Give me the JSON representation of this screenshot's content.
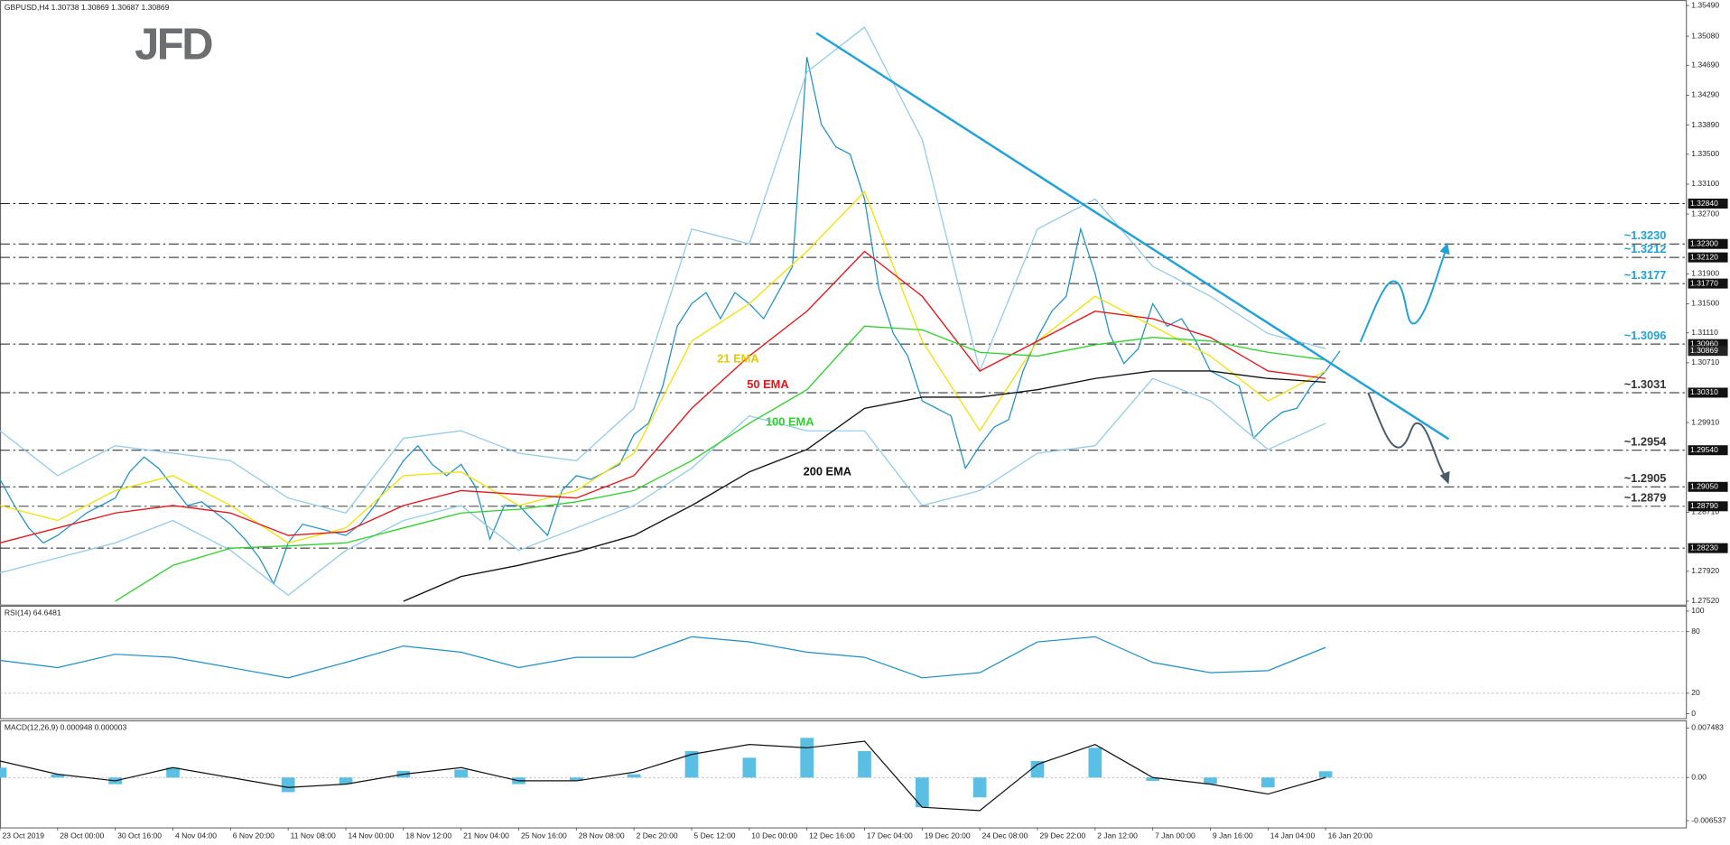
{
  "logo": "JFD",
  "chart_data": [
    {
      "type": "line",
      "title": "GBPUSD,H4  1.30738 1.30869 1.30687 1.30869",
      "xlim": [
        0,
        117
      ],
      "ylim": [
        1.2752,
        1.3549
      ],
      "xticks": [
        {
          "value": 0,
          "label": "23 Oct 2019"
        },
        {
          "value": 4,
          "label": "28 Oct 00:00"
        },
        {
          "value": 8,
          "label": "30 Oct 16:00"
        },
        {
          "value": 12,
          "label": "4 Nov 04:00"
        },
        {
          "value": 16,
          "label": "6 Nov 20:00"
        },
        {
          "value": 20,
          "label": "11 Nov 08:00"
        },
        {
          "value": 24,
          "label": "14 Nov 00:00"
        },
        {
          "value": 28,
          "label": "18 Nov 12:00"
        },
        {
          "value": 32,
          "label": "21 Nov 04:00"
        },
        {
          "value": 36,
          "label": "25 Nov 16:00"
        },
        {
          "value": 40,
          "label": "28 Nov 08:00"
        },
        {
          "value": 44,
          "label": "2 Dec 20:00"
        },
        {
          "value": 48,
          "label": "5 Dec 12:00"
        },
        {
          "value": 52,
          "label": "10 Dec 00:00"
        },
        {
          "value": 56,
          "label": "12 Dec 16:00"
        },
        {
          "value": 60,
          "label": "17 Dec 04:00"
        },
        {
          "value": 64,
          "label": "19 Dec 20:00"
        },
        {
          "value": 68,
          "label": "24 Dec 08:00"
        },
        {
          "value": 72,
          "label": "29 Dec 22:00"
        },
        {
          "value": 76,
          "label": "2 Jan 12:00"
        },
        {
          "value": 80,
          "label": "7 Jan 00:00"
        },
        {
          "value": 84,
          "label": "9 Jan 16:00"
        },
        {
          "value": 88,
          "label": "14 Jan 04:00"
        },
        {
          "value": 92,
          "label": "16 Jan 20:00"
        }
      ],
      "yticks": [
        {
          "value": 1.2752,
          "label": "1.27520"
        },
        {
          "value": 1.2792,
          "label": "1.27920"
        },
        {
          "value": 1.2871,
          "label": "1.28710"
        },
        {
          "value": 1.2991,
          "label": "1.29910"
        },
        {
          "value": 1.3071,
          "label": "1.30710"
        },
        {
          "value": 1.3111,
          "label": "1.31110"
        },
        {
          "value": 1.315,
          "label": "1.31500"
        },
        {
          "value": 1.319,
          "label": "1.31900"
        },
        {
          "value": 1.327,
          "label": "1.32700"
        },
        {
          "value": 1.331,
          "label": "1.33100"
        },
        {
          "value": 1.335,
          "label": "1.33500"
        },
        {
          "value": 1.3389,
          "label": "1.33890"
        },
        {
          "value": 1.3429,
          "label": "1.34290"
        },
        {
          "value": 1.3469,
          "label": "1.34690"
        },
        {
          "value": 1.3508,
          "label": "1.35080"
        },
        {
          "value": 1.3549,
          "label": "1.35490"
        }
      ],
      "levels": [
        {
          "value": 1.3284,
          "label": "1.32840"
        },
        {
          "value": 1.323,
          "label": "1.32300"
        },
        {
          "value": 1.3212,
          "label": "1.32120"
        },
        {
          "value": 1.3177,
          "label": "1.31770"
        },
        {
          "value": 1.3096,
          "label": "1.30960"
        },
        {
          "value": 1.3031,
          "label": "1.30310"
        },
        {
          "value": 1.2954,
          "label": "1.29540"
        },
        {
          "value": 1.2905,
          "label": "1.29050"
        },
        {
          "value": 1.2879,
          "label": "1.28790"
        },
        {
          "value": 1.2823,
          "label": "1.28230"
        }
      ],
      "current_price": {
        "value": 1.30869,
        "label": "1.30869"
      },
      "annotations": [
        {
          "value": 1.323,
          "label": "~1.3230",
          "color": "#1ea2d8"
        },
        {
          "value": 1.3212,
          "label": "~1.3212",
          "color": "#1ea2d8"
        },
        {
          "value": 1.3177,
          "label": "~1.3177",
          "color": "#1ea2d8"
        },
        {
          "value": 1.3096,
          "label": "~1.3096",
          "color": "#1ea2d8"
        },
        {
          "value": 1.3031,
          "label": "~1.3031",
          "color": "#333333"
        },
        {
          "value": 1.2954,
          "label": "~1.2954",
          "color": "#333333"
        },
        {
          "value": 1.2905,
          "label": "~1.2905",
          "color": "#333333"
        },
        {
          "value": 1.2879,
          "label": "~1.2879",
          "color": "#333333"
        }
      ],
      "series": [
        {
          "color": "#1b8fc4",
          "values": [
            1.2915,
            1.288,
            1.285,
            1.283,
            1.284,
            1.2855,
            1.287,
            1.288,
            1.289,
            1.2925,
            1.2945,
            1.293,
            1.2905,
            1.288,
            1.2885,
            1.287,
            1.2855,
            1.2835,
            1.281,
            1.2775,
            1.283,
            1.2855,
            1.285,
            1.2845,
            1.284,
            1.2855,
            1.288,
            1.291,
            1.294,
            1.296,
            1.2935,
            1.292,
            1.2935,
            1.2905,
            1.2835,
            1.288,
            1.288,
            1.286,
            1.284,
            1.29,
            1.292,
            1.2915,
            1.2925,
            1.2935,
            1.2975,
            1.299,
            1.304,
            1.312,
            1.315,
            1.3165,
            1.313,
            1.3165,
            1.315,
            1.313,
            1.3165,
            1.32,
            1.348,
            1.339,
            1.336,
            1.335,
            1.329,
            1.317,
            1.311,
            1.308,
            1.302,
            1.301,
            1.3,
            1.293,
            1.296,
            1.2985,
            1.2995,
            1.306,
            1.3105,
            1.314,
            1.316,
            1.325,
            1.319,
            1.311,
            1.307,
            1.309,
            1.315,
            1.312,
            1.313,
            1.31,
            1.306,
            1.305,
            1.304,
            1.297,
            1.299,
            1.3005,
            1.301,
            1.304,
            1.306,
            1.30869
          ]
        },
        {
          "color": "#8fc8ea",
          "x": [
            0,
            4,
            8,
            12,
            16,
            20,
            24,
            28,
            32,
            36,
            40,
            44,
            48,
            52,
            56,
            60,
            64,
            68,
            72,
            76,
            80,
            84,
            88,
            92
          ],
          "values": [
            1.298,
            1.292,
            1.296,
            1.295,
            1.294,
            1.289,
            1.287,
            1.297,
            1.298,
            1.295,
            1.294,
            1.301,
            1.325,
            1.323,
            1.346,
            1.352,
            1.337,
            1.306,
            1.325,
            1.329,
            1.32,
            1.316,
            1.311,
            1.309
          ]
        },
        {
          "color": "#8fc8ea",
          "x": [
            0,
            4,
            8,
            12,
            16,
            20,
            24,
            28,
            32,
            36,
            40,
            44,
            48,
            52,
            56,
            60,
            64,
            68,
            72,
            76,
            80,
            84,
            88,
            92
          ],
          "values": [
            1.279,
            1.281,
            1.283,
            1.286,
            1.282,
            1.276,
            1.282,
            1.286,
            1.288,
            1.282,
            1.285,
            1.288,
            1.293,
            1.3,
            1.298,
            1.298,
            1.288,
            1.29,
            1.295,
            1.296,
            1.305,
            1.302,
            1.2955,
            1.299
          ]
        },
        {
          "name": "21 EMA",
          "color": "#f2e20a",
          "x": [
            0,
            4,
            8,
            12,
            16,
            20,
            24,
            28,
            32,
            36,
            40,
            44,
            48,
            52,
            56,
            60,
            64,
            68,
            72,
            76,
            80,
            84,
            88,
            92
          ],
          "values": [
            1.288,
            1.286,
            1.29,
            1.292,
            1.288,
            1.283,
            1.285,
            1.292,
            1.2925,
            1.288,
            1.29,
            1.295,
            1.31,
            1.315,
            1.322,
            1.33,
            1.31,
            1.298,
            1.31,
            1.316,
            1.312,
            1.308,
            1.302,
            1.306
          ]
        },
        {
          "name": "50 EMA",
          "color": "#e8141b",
          "x": [
            0,
            4,
            8,
            12,
            16,
            20,
            24,
            28,
            32,
            36,
            40,
            44,
            48,
            52,
            56,
            60,
            64,
            68,
            72,
            76,
            80,
            84,
            88,
            92
          ],
          "values": [
            1.283,
            1.285,
            1.287,
            1.288,
            1.287,
            1.284,
            1.2845,
            1.288,
            1.29,
            1.2895,
            1.289,
            1.292,
            1.301,
            1.308,
            1.314,
            1.322,
            1.316,
            1.306,
            1.31,
            1.314,
            1.313,
            1.3105,
            1.306,
            1.305
          ]
        },
        {
          "name": "100 EMA",
          "color": "#2fd12f",
          "x": [
            0,
            4,
            8,
            12,
            16,
            20,
            24,
            28,
            32,
            36,
            40,
            44,
            48,
            52,
            56,
            60,
            64,
            68,
            72,
            76,
            80,
            84,
            88,
            92
          ],
          "values": [
            null,
            null,
            1.2752,
            1.28,
            1.2823,
            1.2826,
            1.283,
            1.285,
            1.287,
            1.2875,
            1.2885,
            1.29,
            1.294,
            1.299,
            1.3035,
            1.312,
            1.3115,
            1.3085,
            1.308,
            1.3095,
            1.3105,
            1.31,
            1.3085,
            1.3075
          ]
        },
        {
          "name": "200 EMA",
          "color": "#111111",
          "x": [
            0,
            4,
            8,
            12,
            16,
            20,
            24,
            28,
            32,
            36,
            40,
            44,
            48,
            52,
            56,
            60,
            64,
            68,
            72,
            76,
            80,
            84,
            88,
            92
          ],
          "values": [
            null,
            null,
            null,
            null,
            null,
            null,
            null,
            1.2752,
            1.2785,
            1.28,
            1.2818,
            1.284,
            1.288,
            1.2925,
            1.2955,
            1.301,
            1.3025,
            1.3025,
            1.3035,
            1.305,
            1.306,
            1.306,
            1.305,
            1.3045
          ]
        }
      ]
    },
    {
      "type": "line",
      "title": "RSI(14) 64.6481",
      "xlim": [
        0,
        117
      ],
      "ylim": [
        0,
        100
      ],
      "yticks": [
        0,
        20,
        80,
        100
      ],
      "series": [
        {
          "color": "#1b8fc4",
          "x": [
            0,
            4,
            8,
            12,
            16,
            20,
            24,
            28,
            32,
            36,
            40,
            44,
            48,
            52,
            56,
            60,
            64,
            68,
            72,
            76,
            80,
            84,
            88,
            92
          ],
          "values": [
            52,
            45,
            58,
            55,
            45,
            35,
            50,
            66,
            60,
            45,
            55,
            55,
            75,
            70,
            60,
            55,
            35,
            40,
            70,
            75,
            50,
            40,
            42,
            64.6481
          ]
        }
      ]
    },
    {
      "type": "bar",
      "title": "MACD(12,26,9) 0.000948 0.000003",
      "xlim": [
        0,
        117
      ],
      "ylim": [
        -0.006537,
        0.007483
      ],
      "yticks": [
        -0.006537,
        {
          "value": 0,
          "label": "0.00"
        },
        0.007483
      ],
      "series": [
        {
          "color": "#5bbfe3",
          "x": [
            0,
            4,
            8,
            12,
            16,
            20,
            24,
            28,
            32,
            36,
            40,
            44,
            48,
            52,
            56,
            60,
            64,
            68,
            72,
            76,
            80,
            84,
            88,
            92
          ],
          "values": [
            0.0015,
            0.0005,
            -0.001,
            0.0015,
            0,
            -0.0022,
            -0.001,
            0.001,
            0.0012,
            -0.001,
            -0.0005,
            0.0005,
            0.004,
            0.003,
            0.006,
            0.004,
            -0.0045,
            -0.003,
            0.0025,
            0.0045,
            -0.0005,
            -0.001,
            -0.0015,
            0.000948
          ]
        },
        {
          "type": "line",
          "color": "#111111",
          "x": [
            0,
            4,
            8,
            12,
            16,
            20,
            24,
            28,
            32,
            36,
            40,
            44,
            48,
            52,
            56,
            60,
            64,
            68,
            72,
            76,
            80,
            84,
            88,
            92
          ],
          "values": [
            0.0025,
            0.0005,
            -0.0005,
            0.0015,
            0,
            -0.0015,
            -0.001,
            0.0005,
            0.0015,
            -0.0005,
            -0.0005,
            0.0008,
            0.0035,
            0.005,
            0.0045,
            0.0055,
            -0.0045,
            -0.005,
            0.002,
            0.005,
            0,
            -0.001,
            -0.0025,
            3e-06
          ]
        }
      ]
    }
  ]
}
